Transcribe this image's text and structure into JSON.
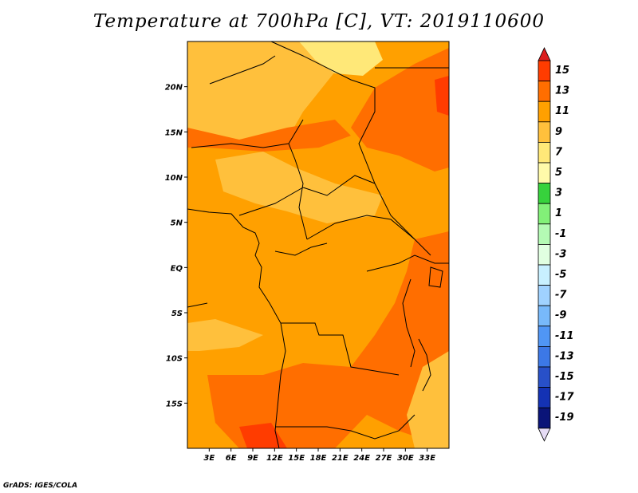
{
  "title": "Temperature at 700hPa [C], VT: 2019110600",
  "footer": "GrADS: IGES/COLA",
  "map": {
    "lon_range": [
      0,
      36
    ],
    "lat_range": [
      -20,
      25
    ],
    "lat_ticks": [
      {
        "value": 20,
        "label": "20N"
      },
      {
        "value": 15,
        "label": "15N"
      },
      {
        "value": 10,
        "label": "10N"
      },
      {
        "value": 5,
        "label": "5N"
      },
      {
        "value": 0,
        "label": "EQ"
      },
      {
        "value": -5,
        "label": "5S"
      },
      {
        "value": -10,
        "label": "10S"
      },
      {
        "value": -15,
        "label": "15S"
      }
    ],
    "lon_ticks": [
      {
        "value": 3,
        "label": "3E"
      },
      {
        "value": 6,
        "label": "6E"
      },
      {
        "value": 9,
        "label": "9E"
      },
      {
        "value": 12,
        "label": "12E"
      },
      {
        "value": 15,
        "label": "15E"
      },
      {
        "value": 18,
        "label": "18E"
      },
      {
        "value": 21,
        "label": "21E"
      },
      {
        "value": 24,
        "label": "24E"
      },
      {
        "value": 27,
        "label": "27E"
      },
      {
        "value": 30,
        "label": "30E"
      },
      {
        "value": 33,
        "label": "33E"
      }
    ],
    "field_colors": {
      "c5_7": "#ffe878",
      "c7_9": "#ffc03c",
      "c9_11": "#ffa000",
      "c11_13": "#ff6e00",
      "c13_15": "#ff3c00"
    },
    "coastline_color": "#000000"
  },
  "colorbar": {
    "levels": [
      "15",
      "13",
      "11",
      "9",
      "7",
      "5",
      "3",
      "1",
      "-1",
      "-3",
      "-5",
      "-7",
      "-9",
      "-11",
      "-13",
      "-15",
      "-17",
      "-19"
    ],
    "colors": [
      "#ff3c00",
      "#ff6e00",
      "#ffa000",
      "#ffc03c",
      "#ffe878",
      "#fffaaa",
      "#37d23c",
      "#82f078",
      "#b4fab4",
      "#e1ffe1",
      "#c8f0ff",
      "#a0d2ff",
      "#78b9fa",
      "#5096f5",
      "#3c78e6",
      "#2850c8",
      "#1432b4",
      "#0a1478"
    ],
    "top_arrow_color": "#dc1e1e",
    "bottom_arrow_color": "#e6dcf5"
  }
}
